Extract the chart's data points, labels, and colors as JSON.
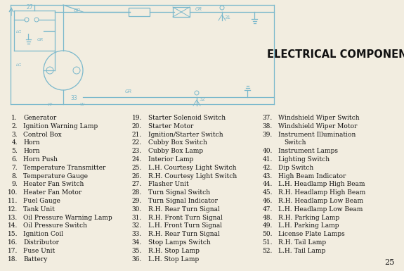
{
  "title": "ELECTRICAL COMPONENTS",
  "background_color": "#f2ede0",
  "text_color": "#1a1a1a",
  "page_number": "25",
  "col1_nums": [
    "1.",
    "2.",
    "3.",
    "4.",
    "5.",
    "6.",
    "7.",
    "8.",
    "9.",
    "10.",
    "11.",
    "12.",
    "13.",
    "14.",
    "15.",
    "16.",
    "17.",
    "18."
  ],
  "col1_text": [
    "Generator",
    "Ignition Warning Lamp",
    "Control Box",
    "Horn",
    "Horn",
    "Horn Push",
    "Temperature Transmitter",
    "Temperature Gauge",
    "Heater Fan Switch",
    "Heater Fan Motor",
    "Fuel Gauge",
    "Tank Unit",
    "Oil Pressure Warning Lamp",
    "Oil Pressure Switch",
    "Ignition Coil",
    "Distributor",
    "Fuse Unit",
    "Battery"
  ],
  "col2_nums": [
    "19.",
    "20.",
    "21.",
    "22.",
    "23.",
    "24.",
    "25.",
    "26.",
    "27.",
    "28.",
    "29.",
    "30.",
    "31.",
    "32.",
    "33.",
    "34.",
    "35.",
    "36."
  ],
  "col2_text": [
    "Starter Solenoid Switch",
    "Starter Motor",
    "Ignition/Starter Switch",
    "Cubby Box Switch",
    "Cubby Box Lamp",
    "Interior Lamp",
    "L.H. Courtesy Light Switch",
    "R.H. Courtesy Light Switch",
    "Flasher Unit",
    "Turn Signal Switch",
    "Turn Signal Indicator",
    "R.H. Rear Turn Signal",
    "R.H. Front Turn Signal",
    "L.H. Front Turn Signal",
    "R.H. Rear Turn Signal",
    "Stop Lamps Switch",
    "R.H. Stop Lamp",
    "L.H. Stop Lamp"
  ],
  "col3_nums": [
    "37.",
    "38.",
    "39.",
    "",
    "40.",
    "41.",
    "42.",
    "43.",
    "44.",
    "45.",
    "46.",
    "47.",
    "48.",
    "49.",
    "50.",
    "51.",
    "52."
  ],
  "col3_text": [
    "Windshield Wiper Switch",
    "Windshield Wiper Motor",
    "Instrument Illumination",
    "Switch",
    "Instrument Lamps",
    "Lighting Switch",
    "Dip Switch",
    "High Beam Indicator",
    "L.H. Headlamp High Beam",
    "R.H. Headlamp High Beam",
    "R.H. Headlamp Low Beam",
    "L.H. Headlamp Low Beam",
    "R.H. Parking Lamp",
    "L.H. Parking Lamp",
    "License Plate Lamps",
    "R.H. Tail Lamp",
    "L.H. Tail Lamp"
  ],
  "diagram_color": "#7ab8cc"
}
